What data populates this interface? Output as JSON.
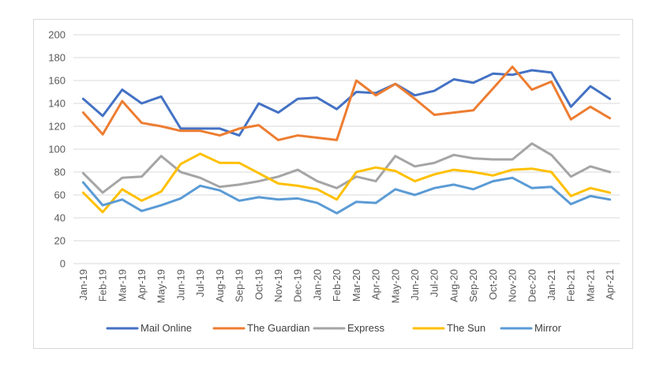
{
  "chart_data": {
    "type": "line",
    "title": "",
    "xlabel": "",
    "ylabel": "",
    "ylim": [
      0,
      200
    ],
    "yticks": [
      0,
      20,
      40,
      60,
      80,
      100,
      120,
      140,
      160,
      180,
      200
    ],
    "grid": true,
    "legend_position": "bottom",
    "categories": [
      "Jan-19",
      "Feb-19",
      "Mar-19",
      "Apr-19",
      "May-19",
      "Jun-19",
      "Jul-19",
      "Aug-19",
      "Sep-19",
      "Oct-19",
      "Nov-19",
      "Dec-19",
      "Jan-20",
      "Feb-20",
      "Mar-20",
      "Apr-20",
      "May-20",
      "Jun-20",
      "Jul-20",
      "Aug-20",
      "Sep-20",
      "Oct-20",
      "Nov-20",
      "Dec-20",
      "Jan-21",
      "Feb-21",
      "Mar-21",
      "Apr-21"
    ],
    "series": [
      {
        "name": "Mail Online",
        "color": "#4472C4",
        "values": [
          144,
          129,
          152,
          140,
          146,
          118,
          118,
          118,
          112,
          140,
          132,
          144,
          145,
          135,
          150,
          149,
          157,
          147,
          151,
          161,
          158,
          166,
          165,
          169,
          167,
          137,
          155,
          144
        ]
      },
      {
        "name": "The Guardian",
        "color": "#ED7D31",
        "values": [
          132,
          113,
          142,
          123,
          120,
          116,
          116,
          112,
          118,
          121,
          108,
          112,
          110,
          108,
          160,
          147,
          157,
          144,
          130,
          132,
          134,
          153,
          172,
          152,
          159,
          126,
          137,
          127
        ]
      },
      {
        "name": "Express",
        "color": "#A5A5A5",
        "values": [
          79,
          62,
          75,
          76,
          94,
          80,
          75,
          67,
          69,
          72,
          76,
          82,
          72,
          66,
          76,
          72,
          94,
          85,
          88,
          95,
          92,
          91,
          91,
          105,
          95,
          76,
          85,
          80
        ]
      },
      {
        "name": "The Sun",
        "color": "#FFC000",
        "values": [
          62,
          45,
          65,
          55,
          63,
          87,
          96,
          88,
          88,
          79,
          70,
          68,
          65,
          56,
          80,
          84,
          81,
          72,
          78,
          82,
          80,
          77,
          82,
          83,
          80,
          59,
          66,
          62
        ]
      },
      {
        "name": "Mirror",
        "color": "#5B9BD5",
        "values": [
          71,
          51,
          56,
          46,
          51,
          57,
          68,
          64,
          55,
          58,
          56,
          57,
          53,
          44,
          54,
          53,
          65,
          60,
          66,
          69,
          65,
          72,
          75,
          66,
          67,
          52,
          59,
          56
        ]
      }
    ]
  }
}
